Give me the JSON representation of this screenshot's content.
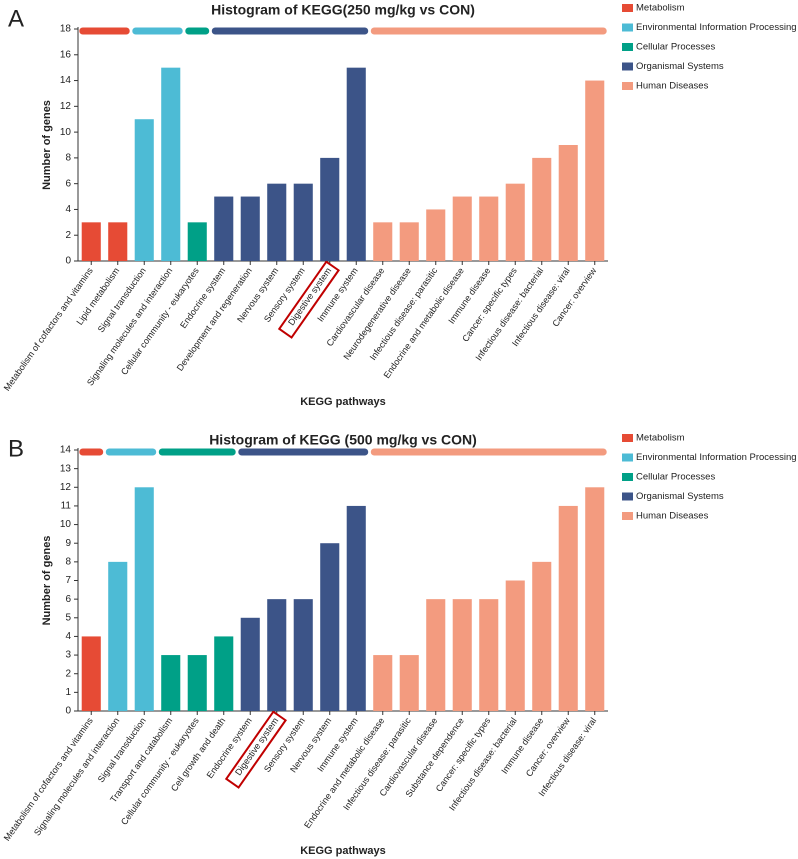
{
  "chart_data": [
    {
      "type": "bar",
      "label": "A",
      "title": "Histogram of KEGG(250 mg/kg vs CON)",
      "xlabel": "KEGG pathways",
      "ylabel": "Number of genes",
      "categories": [
        "Metabolism of cofactors and vitamins",
        "Lipid metabolism",
        "Signal transduction",
        "Signaling molecules and interaction",
        "Cellular community - eukaryotes",
        "Endocrine system",
        "Development and regeneration",
        "Nervous system",
        "Sensory system",
        "Digestive system",
        "Immune system",
        "Cardiovascular disease",
        "Neurodegenerative disease",
        "Infectious disease: parasitic",
        "Endocrine and metabolic disease",
        "Immune disease",
        "Cancer: specific types",
        "Infectious disease: bacterial",
        "Infectious disease: viral",
        "Cancer: overview"
      ],
      "series": [
        {
          "name": "Metabolism",
          "color": "#e64b35",
          "values": [
            3,
            3,
            null,
            null,
            null,
            null,
            null,
            null,
            null,
            null,
            null,
            null,
            null,
            null,
            null,
            null,
            null,
            null,
            null,
            null
          ]
        },
        {
          "name": "Environmental Information Processing",
          "color": "#4dbbd5",
          "values": [
            null,
            null,
            11,
            15,
            null,
            null,
            null,
            null,
            null,
            null,
            null,
            null,
            null,
            null,
            null,
            null,
            null,
            null,
            null,
            null
          ]
        },
        {
          "name": "Cellular Processes",
          "color": "#00a087",
          "values": [
            null,
            null,
            null,
            null,
            3,
            null,
            null,
            null,
            null,
            null,
            null,
            null,
            null,
            null,
            null,
            null,
            null,
            null,
            null,
            null
          ]
        },
        {
          "name": "Organismal Systems",
          "color": "#3c5488",
          "values": [
            null,
            null,
            null,
            null,
            null,
            5,
            5,
            6,
            6,
            8,
            15,
            null,
            null,
            null,
            null,
            null,
            null,
            null,
            null,
            null
          ]
        },
        {
          "name": "Human Diseases",
          "color": "#f39b7f",
          "values": [
            null,
            null,
            null,
            null,
            null,
            null,
            null,
            null,
            null,
            null,
            null,
            3,
            3,
            4,
            5,
            5,
            6,
            8,
            9,
            14
          ]
        }
      ],
      "ylim": [
        0,
        18
      ],
      "yticks": [
        0,
        2,
        4,
        6,
        8,
        10,
        12,
        14,
        16,
        18
      ]
    },
    {
      "type": "bar",
      "label": "B",
      "title": "Histogram of KEGG (500 mg/kg vs CON)",
      "xlabel": "KEGG pathways",
      "ylabel": "Number of genes",
      "categories": [
        "Metabolism of cofactors and vitamins",
        "Signaling molecules and interaction",
        "Signal transduction",
        "Transport and catabolism",
        "Cellular community - eukaryotes",
        "Cell growth and death",
        "Endocrine system",
        "Digestive system",
        "Sensory system",
        "Nervous system",
        "Immune system",
        "Endocrine and metabolic disease",
        "Infectious disease: parasitic",
        "Cardiovascular disease",
        "Substance dependence",
        "Cancer: specific types",
        "Infectious disease: bacterial",
        "Immune disease",
        "Cancer: overview",
        "Infectious disease: viral"
      ],
      "series": [
        {
          "name": "Metabolism",
          "color": "#e64b35",
          "values": [
            4,
            null,
            null,
            null,
            null,
            null,
            null,
            null,
            null,
            null,
            null,
            null,
            null,
            null,
            null,
            null,
            null,
            null,
            null,
            null
          ]
        },
        {
          "name": "Environmental Information Processing",
          "color": "#4dbbd5",
          "values": [
            null,
            8,
            12,
            null,
            null,
            null,
            null,
            null,
            null,
            null,
            null,
            null,
            null,
            null,
            null,
            null,
            null,
            null,
            null,
            null
          ]
        },
        {
          "name": "Cellular Processes",
          "color": "#00a087",
          "values": [
            null,
            null,
            null,
            3,
            3,
            4,
            null,
            null,
            null,
            null,
            null,
            null,
            null,
            null,
            null,
            null,
            null,
            null,
            null,
            null
          ]
        },
        {
          "name": "Organismal Systems",
          "color": "#3c5488",
          "values": [
            null,
            null,
            null,
            null,
            null,
            null,
            5,
            6,
            6,
            9,
            11,
            null,
            null,
            null,
            null,
            null,
            null,
            null,
            null,
            null
          ]
        },
        {
          "name": "Human Diseases",
          "color": "#f39b7f",
          "values": [
            null,
            null,
            null,
            null,
            null,
            null,
            null,
            null,
            null,
            null,
            null,
            3,
            3,
            6,
            6,
            6,
            7,
            8,
            11,
            12
          ]
        }
      ],
      "ylim": [
        0,
        14
      ],
      "yticks": [
        0,
        1,
        2,
        3,
        4,
        5,
        6,
        7,
        8,
        9,
        10,
        11,
        12,
        13,
        14
      ]
    }
  ]
}
